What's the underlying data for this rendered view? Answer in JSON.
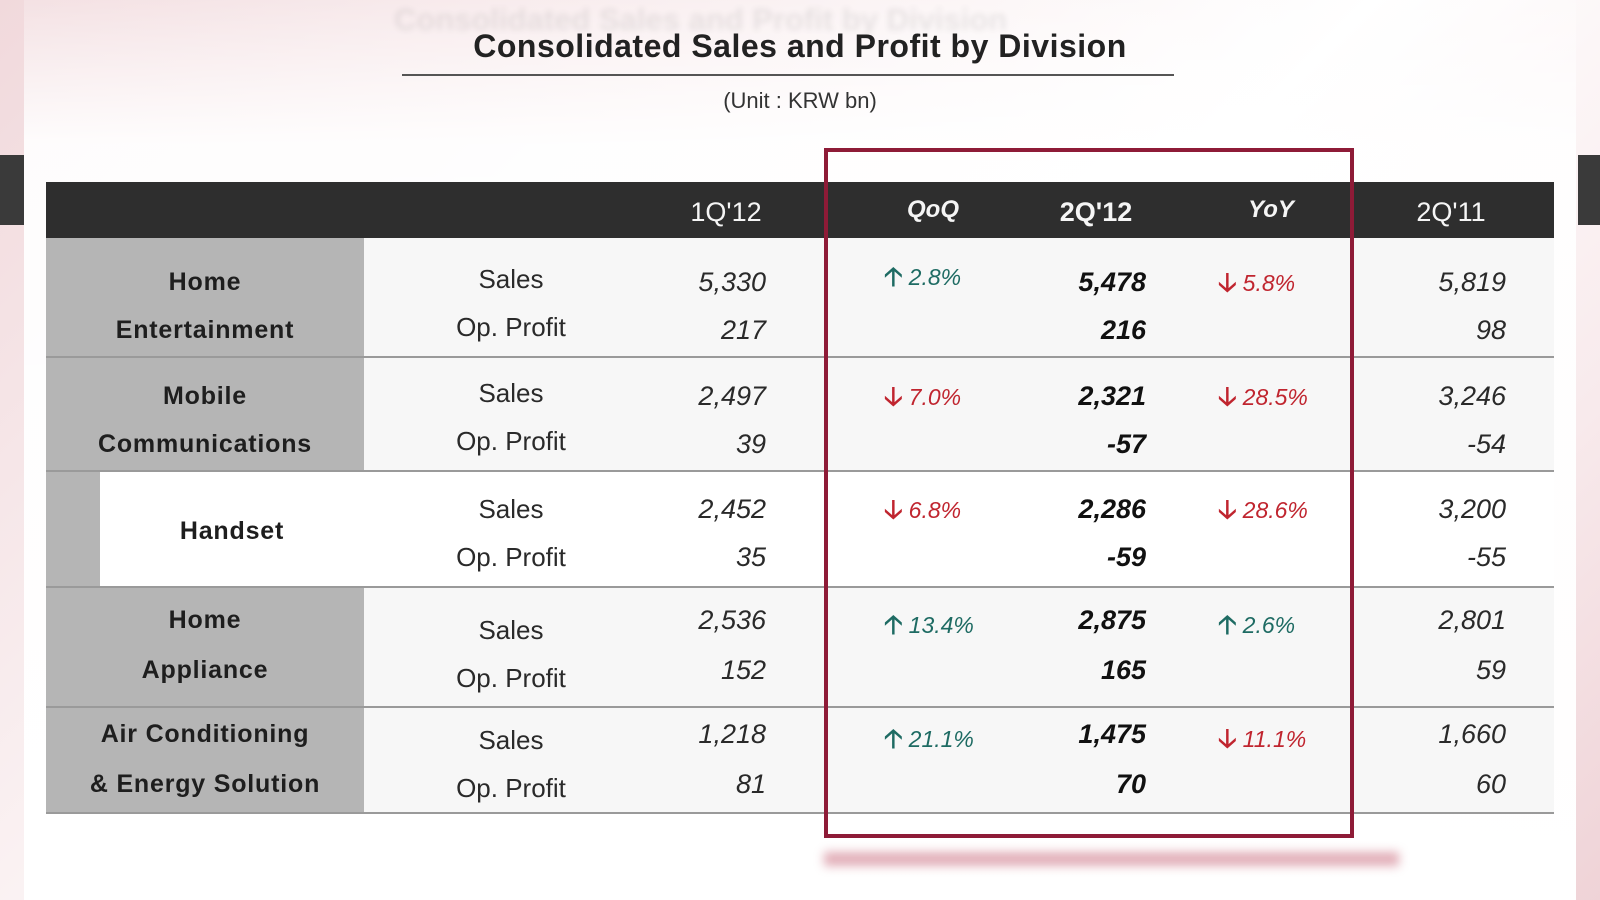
{
  "title": "Consolidated Sales and Profit by Division",
  "unit": "(Unit : KRW bn)",
  "columns": {
    "q1_12": "1Q'12",
    "qoq": "QoQ",
    "q2_12": "2Q'12",
    "yoy": "YoY",
    "q2_11": "2Q'11"
  },
  "colors": {
    "header_bg": "#2e2e2e",
    "highlight_border": "#8e1b37",
    "up": "#1e6b63",
    "down": "#c0252f"
  },
  "icons": {
    "up": "arrow-up-icon",
    "down": "arrow-down-icon"
  },
  "rows": [
    {
      "division_line1": "Home",
      "division_line2": "Entertainment",
      "sales_label": "Sales",
      "profit_label": "Op. Profit",
      "q1_sales": "5,330",
      "q1_profit": "217",
      "qoq_dir": "up",
      "qoq_arrow": "🡡",
      "qoq": "2.8%",
      "q2_sales": "5,478",
      "q2_profit": "216",
      "yoy_dir": "down",
      "yoy_arrow": "🡣",
      "yoy": "5.8%",
      "q11_sales": "5,819",
      "q11_profit": "98"
    },
    {
      "division_line1": "Mobile",
      "division_line2": "Communications",
      "sales_label": "Sales",
      "profit_label": "Op. Profit",
      "q1_sales": "2,497",
      "q1_profit": "39",
      "qoq_dir": "down",
      "qoq_arrow": "🡣",
      "qoq": "7.0%",
      "q2_sales": "2,321",
      "q2_profit": "-57",
      "yoy_dir": "down",
      "yoy_arrow": "🡣",
      "yoy": "28.5%",
      "q11_sales": "3,246",
      "q11_profit": "-54"
    },
    {
      "division_line1": "Handset",
      "division_line2": "",
      "sales_label": "Sales",
      "profit_label": "Op. Profit",
      "q1_sales": "2,452",
      "q1_profit": "35",
      "qoq_dir": "down",
      "qoq_arrow": "🡣",
      "qoq": "6.8%",
      "q2_sales": "2,286",
      "q2_profit": "-59",
      "yoy_dir": "down",
      "yoy_arrow": "🡣",
      "yoy": "28.6%",
      "q11_sales": "3,200",
      "q11_profit": "-55"
    },
    {
      "division_line1": "Home",
      "division_line2": "Appliance",
      "sales_label": "Sales",
      "profit_label": "Op. Profit",
      "q1_sales": "2,536",
      "q1_profit": "152",
      "qoq_dir": "up",
      "qoq_arrow": "🡡",
      "qoq": "13.4%",
      "q2_sales": "2,875",
      "q2_profit": "165",
      "yoy_dir": "up",
      "yoy_arrow": "🡡",
      "yoy": "2.6%",
      "q11_sales": "2,801",
      "q11_profit": "59"
    },
    {
      "division_line1": "Air Conditioning",
      "division_line2": "& Energy Solution",
      "sales_label": "Sales",
      "profit_label": "Op. Profit",
      "q1_sales": "1,218",
      "q1_profit": "81",
      "qoq_dir": "up",
      "qoq_arrow": "🡡",
      "qoq": "21.1%",
      "q2_sales": "1,475",
      "q2_profit": "70",
      "yoy_dir": "down",
      "yoy_arrow": "🡣",
      "yoy": "11.1%",
      "q11_sales": "1,660",
      "q11_profit": "60"
    }
  ]
}
